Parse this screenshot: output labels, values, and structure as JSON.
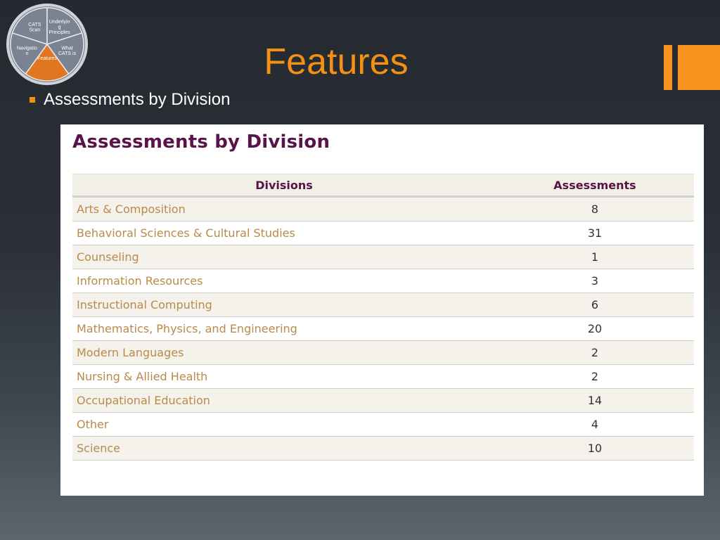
{
  "nav_wheel": {
    "segments": [
      {
        "label_lines": [
          "CATS",
          "Scan"
        ]
      },
      {
        "label_lines": [
          "Underlyin",
          "g",
          "Principles"
        ]
      },
      {
        "label_lines": [
          "What",
          "CATS is"
        ]
      },
      {
        "label_lines": [
          "Features"
        ]
      },
      {
        "label_lines": [
          "Navigatio",
          "n"
        ]
      }
    ],
    "active_color": "#e0761f",
    "segment_color": "#7a8391"
  },
  "slide": {
    "title": "Features",
    "bullet": "Assessments by Division",
    "accent_color": "#f39015"
  },
  "panel": {
    "heading": "Assessments by Division",
    "columns": [
      "Divisions",
      "Assessments"
    ],
    "rows": [
      {
        "division": "Arts & Composition",
        "count": "8"
      },
      {
        "division": "Behavioral Sciences & Cultural Studies",
        "count": "31"
      },
      {
        "division": "Counseling",
        "count": "1"
      },
      {
        "division": "Information Resources",
        "count": "3"
      },
      {
        "division": "Instructional Computing",
        "count": "6"
      },
      {
        "division": "Mathematics, Physics, and Engineering",
        "count": "20"
      },
      {
        "division": "Modern Languages",
        "count": "2"
      },
      {
        "division": "Nursing & Allied Health",
        "count": "2"
      },
      {
        "division": "Occupational Education",
        "count": "14"
      },
      {
        "division": "Other",
        "count": "4"
      },
      {
        "division": "Science",
        "count": "10"
      }
    ]
  }
}
